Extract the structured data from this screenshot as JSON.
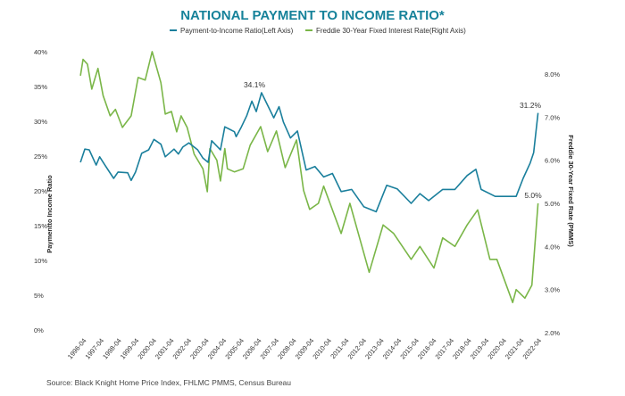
{
  "chart_data": {
    "type": "line",
    "title": "NATIONAL PAYMENT TO INCOME RATIO*",
    "ylabel": "Paymentto Income Ratio",
    "y2label": "Freddie 30-Year Fixed Rate (PMMS)",
    "ylim": [
      0,
      40
    ],
    "y2lim": [
      2.0,
      8.0
    ],
    "yticks": [
      "0%",
      "5%",
      "10%",
      "15%",
      "20%",
      "25%",
      "30%",
      "35%",
      "40%"
    ],
    "y2ticks": [
      "2.0%",
      "3.0%",
      "4.0%",
      "5.0%",
      "6.0%",
      "7.0%",
      "8.0%"
    ],
    "xticks": [
      "1996-04",
      "1997-04",
      "1998-04",
      "1999-04",
      "2000-04",
      "2001-04",
      "2002-04",
      "2003-04",
      "2004-04",
      "2005-04",
      "2006-04",
      "2007-04",
      "2008-04",
      "2009-04",
      "2010-04",
      "2011-04",
      "2012-04",
      "2013-04",
      "2014-04",
      "2015-04",
      "2016-04",
      "2017-04",
      "2018-04",
      "2019-04",
      "2020-04",
      "2021-04",
      "2022-04"
    ],
    "legend_position": "top-center",
    "grid": false,
    "series": [
      {
        "name": "Payment-to-Income Ratio(Left Axis)",
        "axis": "left",
        "color": "#1a7f9c",
        "x": [
          1996.1,
          1996.35,
          1996.6,
          1997.0,
          1997.2,
          1997.5,
          1998.0,
          1998.25,
          1998.8,
          1999.0,
          1999.25,
          1999.6,
          2000.0,
          2000.3,
          2000.7,
          2000.95,
          2001.45,
          2001.7,
          2001.95,
          2002.3,
          2002.8,
          2003.1,
          2003.4,
          2003.6,
          2004.1,
          2004.35,
          2004.9,
          2005.0,
          2005.3,
          2005.6,
          2005.9,
          2006.15,
          2006.45,
          2006.9,
          2007.15,
          2007.45,
          2007.7,
          2008.1,
          2008.5,
          2009.0,
          2009.5,
          2010.0,
          2010.5,
          2011.0,
          2011.6,
          2012.3,
          2013.0,
          2013.6,
          2014.2,
          2015.0,
          2015.5,
          2016.0,
          2016.8,
          2017.5,
          2018.2,
          2018.7,
          2019.0,
          2019.8,
          2020.5,
          2021.0,
          2021.4,
          2021.8,
          2022.0,
          2022.25
        ],
        "y": [
          24.1,
          26.0,
          25.9,
          23.7,
          24.9,
          23.7,
          21.8,
          22.7,
          22.6,
          21.5,
          22.7,
          25.4,
          25.9,
          27.4,
          26.7,
          24.9,
          26.0,
          25.3,
          26.3,
          26.9,
          25.9,
          24.7,
          24.1,
          27.2,
          25.9,
          29.2,
          28.5,
          27.8,
          29.2,
          30.8,
          32.9,
          31.4,
          34.1,
          31.8,
          30.5,
          32.1,
          29.9,
          27.6,
          28.6,
          23.0,
          23.5,
          22.0,
          22.5,
          19.9,
          20.2,
          17.7,
          17.0,
          20.8,
          20.3,
          18.2,
          19.6,
          18.6,
          20.2,
          20.2,
          22.2,
          23.1,
          20.2,
          19.2,
          19.2,
          19.2,
          21.8,
          24.0,
          25.5,
          31.2
        ]
      },
      {
        "name": "Freddie 30-Year Fixed Interest Rate(Right Axis)",
        "axis": "right",
        "color": "#7ab648",
        "x": [
          1996.1,
          1996.25,
          1996.5,
          1996.75,
          1997.1,
          1997.4,
          1997.8,
          1998.1,
          1998.5,
          1999.0,
          1999.4,
          1999.8,
          2000.2,
          2000.7,
          2000.95,
          2001.3,
          2001.6,
          2001.85,
          2002.2,
          2002.6,
          2003.1,
          2003.35,
          2003.5,
          2003.9,
          2004.1,
          2004.35,
          2004.5,
          2004.9,
          2005.4,
          2005.8,
          2006.4,
          2006.8,
          2007.3,
          2007.8,
          2008.45,
          2008.85,
          2009.2,
          2009.7,
          2010.0,
          2011.0,
          2011.5,
          2012.6,
          2013.4,
          2014.0,
          2015.0,
          2015.5,
          2016.3,
          2016.8,
          2017.5,
          2018.2,
          2018.8,
          2019.5,
          2019.9,
          2020.8,
          2021.0,
          2021.5,
          2021.9,
          2022.25
        ],
        "y": [
          7.96,
          8.34,
          8.23,
          7.65,
          8.13,
          7.5,
          7.03,
          7.18,
          6.76,
          7.03,
          7.92,
          7.86,
          8.52,
          7.8,
          7.07,
          7.13,
          6.66,
          7.03,
          6.76,
          6.14,
          5.8,
          5.27,
          6.27,
          6.0,
          5.52,
          6.27,
          5.8,
          5.73,
          5.8,
          6.35,
          6.78,
          6.2,
          6.68,
          5.83,
          6.47,
          5.3,
          4.86,
          5.0,
          5.4,
          4.3,
          5.0,
          3.4,
          4.5,
          4.3,
          3.7,
          4.0,
          3.5,
          4.2,
          4.0,
          4.5,
          4.85,
          3.7,
          3.7,
          2.7,
          3.0,
          2.8,
          3.1,
          5.0
        ]
      }
    ],
    "annotations": [
      "34.1%",
      "31.2%",
      "5.0%"
    ],
    "source": "Source: Black Knight Home Price Index, FHLMC PMMS, Census Bureau"
  }
}
